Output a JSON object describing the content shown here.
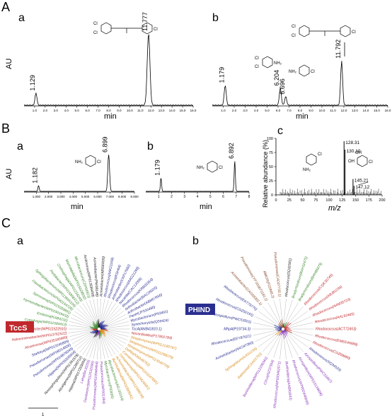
{
  "panel_letters": {
    "A": "A",
    "B": "B",
    "C": "C"
  },
  "sub_letters": {
    "a": "a",
    "b": "b",
    "c": "c"
  },
  "labels": {
    "au": "AU",
    "min": "min",
    "mz": "m/z",
    "rel_abund": "Relative abundance (%)",
    "cl": "Cl",
    "nh2": "NH₂",
    "oh": "OH",
    "scale_bar": "1"
  },
  "callouts": {
    "tccs": "TccS",
    "ph_ind": "PHIND"
  },
  "colors": {
    "green": "#3c8a2e",
    "red": "#c0282c",
    "blue": "#2a2f8f",
    "orange": "#d78a1a",
    "purple": "#8a35b8",
    "brown": "#8a4a2a",
    "black": "#222222"
  },
  "chart_data": [
    {
      "type": "line",
      "panel": "A-a",
      "xlabel": "min",
      "ylabel": "AU",
      "xlim": [
        0,
        16
      ],
      "x_ticks": [
        "1.0",
        "2.0",
        "3.0",
        "4.0",
        "5.0",
        "6.0",
        "7.0",
        "8.0",
        "9.0",
        "10.0",
        "11.0",
        "12.0",
        "13.0",
        "14.0",
        "15.0",
        "16.0"
      ],
      "peaks": [
        {
          "x": 1.129,
          "label": "1.129",
          "height": 0.17
        },
        {
          "x": 11.777,
          "label": "11.777",
          "height": 1.0
        }
      ]
    },
    {
      "type": "line",
      "panel": "A-b",
      "xlabel": "min",
      "ylabel": "",
      "xlim": [
        0,
        16
      ],
      "x_ticks": [
        "1.0",
        "2.0",
        "3.0",
        "4.0",
        "5.0",
        "6.0",
        "7.0",
        "8.0",
        "9.0",
        "10.0",
        "11.0",
        "12.0",
        "13.0",
        "14.0",
        "15.0",
        "16.0"
      ],
      "peaks": [
        {
          "x": 1.179,
          "label": "1.179",
          "height": 0.28
        },
        {
          "x": 6.204,
          "label": "6.204",
          "height": 0.24
        },
        {
          "x": 6.696,
          "label": "6.696",
          "height": 0.12
        },
        {
          "x": 11.792,
          "label": "11.792",
          "height": 0.62
        }
      ]
    },
    {
      "type": "line",
      "panel": "B-a",
      "xlabel": "min",
      "ylabel": "AU",
      "xlim": [
        0,
        9
      ],
      "x_ticks": [
        "1.000",
        "2.000",
        "3.000",
        "4.000",
        "5.000",
        "6.000",
        "7.000",
        "8.000",
        "9.000"
      ],
      "peaks": [
        {
          "x": 1.182,
          "label": "1.182",
          "height": 0.16
        },
        {
          "x": 6.899,
          "label": "6.899",
          "height": 1.0
        }
      ]
    },
    {
      "type": "line",
      "panel": "B-b",
      "xlabel": "min",
      "ylabel": "",
      "xlim": [
        0,
        8
      ],
      "x_ticks": [
        "1",
        "2",
        "3",
        "4",
        "5",
        "6",
        "7",
        "8"
      ],
      "peaks": [
        {
          "x": 1.179,
          "label": "1.179",
          "height": 0.32
        },
        {
          "x": 6.892,
          "label": "6.892",
          "height": 0.72
        }
      ]
    },
    {
      "type": "bar",
      "panel": "B-c",
      "xlabel": "m/z",
      "ylabel": "Relative abundance (%)",
      "xlim": [
        0,
        200
      ],
      "ylim": [
        0,
        100
      ],
      "x_ticks": [
        "0",
        "25",
        "50",
        "75",
        "100",
        "125",
        "150",
        "175",
        "200"
      ],
      "y_ticks": [
        "0",
        "25",
        "50",
        "75",
        "100"
      ],
      "labeled_peaks": [
        {
          "x": 128.31,
          "y": 95,
          "label": "128.31"
        },
        {
          "x": 130.1,
          "y": 80,
          "label": "130.10"
        },
        {
          "x": 145.21,
          "y": 28,
          "label": "145.21"
        },
        {
          "x": 147.12,
          "y": 16,
          "label": "147.12"
        }
      ]
    }
  ],
  "tree_a": {
    "callout_index": 11,
    "leaves": [
      {
        "label": "Acinetobacter(AB930830)",
        "c": "black"
      },
      {
        "label": "Rhodococcus(AAK21168)",
        "c": "blue"
      },
      {
        "label": "Rhodococcus(KSH64)",
        "c": "blue"
      },
      {
        "label": "Arthrobacter(CKP17682)",
        "c": "blue"
      },
      {
        "label": "Rhodococcus(AAG21268)",
        "c": "blue"
      },
      {
        "label": "Nocardia(CAC12095)",
        "c": "blue"
      },
      {
        "label": "Rhodococcus(KRB00354)",
        "c": "blue"
      },
      {
        "label": "Arthrobacter(BAC26025)",
        "c": "blue"
      },
      {
        "label": "Arthrobacter(ABM07656)",
        "c": "blue"
      },
      {
        "label": "PaniH(JF916480)",
        "c": "blue"
      },
      {
        "label": "Mycobacterium(P93491)",
        "c": "blue"
      },
      {
        "label": "Synechocystis(Q59424)",
        "c": "blue"
      },
      {
        "label": "TccA(ANB41810.1)",
        "c": "blue"
      },
      {
        "label": "Nocardioides(P17801784)",
        "c": "red"
      },
      {
        "label": "Streptomyces(WP012180797)",
        "c": "orange"
      },
      {
        "label": "Streptomyces(WP011298079)",
        "c": "orange"
      },
      {
        "label": "Streptomyces(WP013040759)",
        "c": "orange"
      },
      {
        "label": "Delftia(KMA48762)",
        "c": "orange"
      },
      {
        "label": "Comamonas(WP0103247891)",
        "c": "orange"
      },
      {
        "label": "Comamonas(WP019426681)",
        "c": "orange"
      },
      {
        "label": "Achromobacter(WP012398034)",
        "c": "orange"
      },
      {
        "label": "Burkholderia(WP011889041)",
        "c": "orange"
      },
      {
        "label": "Mycobacterium(AGJ10154)",
        "c": "green"
      },
      {
        "label": "Mycobacterium(P93495)",
        "c": "green"
      },
      {
        "label": "Pseudomonas(WP001394)",
        "c": "purple"
      },
      {
        "label": "Pseudomonas(WP019946464)",
        "c": "purple"
      },
      {
        "label": "Geobacter(WP012532090)",
        "c": "purple"
      },
      {
        "label": "Laha(BAJ0255)",
        "c": "purple"
      },
      {
        "label": "Hippea(WP017283054)",
        "c": "black"
      },
      {
        "label": "Alcaligenes(WP01298712)",
        "c": "black"
      },
      {
        "label": "Novosphingobium(WP01341578)",
        "c": "black"
      },
      {
        "label": "Hippea(WP035505904)",
        "c": "blue"
      },
      {
        "label": "Pseudomonas(WP019876049)",
        "c": "blue"
      },
      {
        "label": "Pseudomonas(WP08014826)",
        "c": "blue"
      },
      {
        "label": "Starkeya(WP013166889)",
        "c": "blue"
      },
      {
        "label": "Alcanivorax(WP035180489)",
        "c": "red"
      },
      {
        "label": "Halocomenobacter(WP013762522)",
        "c": "red"
      },
      {
        "label": "Rubrobacter(WP011522910)",
        "c": "red"
      },
      {
        "label": "Cytophaga(WP011584412)",
        "c": "green"
      },
      {
        "label": "Emticicia(KAB4232)",
        "c": "green"
      },
      {
        "label": "Hymenobacter(WP015019432)",
        "c": "green"
      },
      {
        "label": "Spirosoma(WP015028891)",
        "c": "green"
      },
      {
        "label": "Flavobacterium(WP040154728)",
        "c": "green"
      },
      {
        "label": "Sphingobacterium(WP013665104)",
        "c": "green"
      },
      {
        "label": "Pedobacter(WP015808312)",
        "c": "green"
      },
      {
        "label": "Chitinophaga(WP01218245)",
        "c": "green"
      },
      {
        "label": "Marinilabilia(WP015028832)",
        "c": "green"
      },
      {
        "label": "Microbacterium(CDP04921)",
        "c": "green"
      },
      {
        "label": "Acidovorax(WP013596458)",
        "c": "black"
      },
      {
        "label": "Acinetobacter(PW08148)",
        "c": "black"
      }
    ]
  },
  "tree_b": {
    "callout_index": 10,
    "leaves": [
      {
        "label": "Rhodococcus(SQ32581)",
        "c": "black"
      },
      {
        "label": "Bradyrhizobium(BAH11475)",
        "c": "green"
      },
      {
        "label": "Bradyrhizobium(BAH86475)",
        "c": "green"
      },
      {
        "label": "Rhodococcus(CQK35745)",
        "c": "red"
      },
      {
        "label": "Rhodococcus(ABJ81234)",
        "c": "red"
      },
      {
        "label": "Rhodococcus(AAM35723)",
        "c": "red"
      },
      {
        "label": "Rhodococcus(AAL92465)",
        "c": "red"
      },
      {
        "label": "Rhodococcus(ACT72453)",
        "c": "red"
      },
      {
        "label": "Rhodococcus(EMEE49888)",
        "c": "red"
      },
      {
        "label": "Rhodococcus(CDZ89890)",
        "c": "red"
      },
      {
        "label": "Rhodococcus(SQ34533)",
        "c": "blue"
      },
      {
        "label": "Azospirillum(PWC53487)",
        "c": "purple"
      },
      {
        "label": "Azospirillum(WP019134896)",
        "c": "purple"
      },
      {
        "label": "Rhodococcus(WP002446849)",
        "c": "purple"
      },
      {
        "label": "Burkholderia(AAB81843)",
        "c": "purple"
      },
      {
        "label": "Rhodococcus(WP033462971)",
        "c": "purple"
      },
      {
        "label": "Citrus(NZ37564)",
        "c": "purple"
      },
      {
        "label": "Burkholderia(WP012338342)",
        "c": "purple"
      },
      {
        "label": "Ralstonia(CAA01753)",
        "c": "orange"
      },
      {
        "label": "Sphingobium(AJ011234)",
        "c": "orange"
      },
      {
        "label": "Acinetobacter(AAO47360)",
        "c": "blue"
      },
      {
        "label": "Rhodococcus(EEY87621)",
        "c": "blue"
      },
      {
        "label": "MhpA(P19734.3)",
        "c": "blue"
      },
      {
        "label": "Azospirillum(PWC53501)",
        "c": "blue"
      },
      {
        "label": "Rhodococcus(CDZ92191)",
        "c": "blue"
      },
      {
        "label": "Rhodococcus(EKT79770)",
        "c": "blue"
      },
      {
        "label": "Acinetobacter(CAG68302.1)",
        "c": "brown"
      },
      {
        "label": "Pseudomonas(YP 003671181.1)",
        "c": "brown"
      },
      {
        "label": "MMOR(P22868.2)",
        "c": "brown"
      },
      {
        "label": "Pseudomonas(CAD27730.1)",
        "c": "brown"
      }
    ]
  }
}
